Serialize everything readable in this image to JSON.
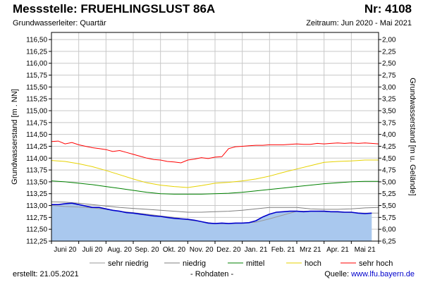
{
  "header": {
    "title": "Messstelle: FRUEHLINGSLUST 86A",
    "number": "Nr: 4108",
    "aquifer": "Grundwasserleiter: Quartär",
    "period": "Zeitraum: Jun 2020 - Mai 2021"
  },
  "footer": {
    "created": "erstellt:  21.05.2021",
    "raw": "- Rohdaten -",
    "source_label": "Quelle:",
    "source_url": "www.lfu.bayern.de"
  },
  "colors": {
    "sehr_niedrig": "#999999",
    "niedrig": "#808080",
    "mittel": "#008000",
    "hoch": "#e6d200",
    "sehr_hoch": "#ff0000",
    "actual_line": "#0000cc",
    "actual_fill": "#a9c8ee",
    "grid": "#c8c8c8"
  },
  "chart_data": {
    "type": "line",
    "title": "",
    "ylabel": "Grundwasserstand [m . NN]",
    "y2label": "Grundwasserstand [m u. Gelände]",
    "ylim": [
      112.25,
      116.65
    ],
    "y2lim": [
      6.25,
      1.85
    ],
    "yticks": [
      "116,50",
      "116,25",
      "116,00",
      "115,75",
      "115,50",
      "115,25",
      "115,00",
      "114,75",
      "114,50",
      "114,25",
      "114,00",
      "113,75",
      "113,50",
      "113,25",
      "113,00",
      "112,75",
      "112,50",
      "112,25"
    ],
    "y2ticks": [
      "2,00",
      "2,25",
      "2,50",
      "2,75",
      "3,00",
      "3,25",
      "3,50",
      "3,75",
      "4,00",
      "4,25",
      "4,50",
      "4,75",
      "5,00",
      "5,25",
      "5,50",
      "5,75",
      "6,00",
      "6,25"
    ],
    "xlim": [
      0,
      12
    ],
    "xticks": [
      "Juni 20",
      "Juli 20",
      "Aug. 20",
      "Sep. 20",
      "Okt. 20",
      "Nov. 20",
      "Dez. 20",
      "Jan. 21",
      "Feb. 21",
      "Mrz 21",
      "Apr. 21",
      "Mai 21"
    ],
    "grid": true,
    "legend_position": "bottom",
    "series": [
      {
        "name": "sehr niedrig",
        "key": "sehr_niedrig",
        "x": [
          0,
          0.5,
          1,
          1.5,
          2,
          2.5,
          3,
          3.5,
          4,
          4.5,
          5,
          5.5,
          6,
          6.5,
          7,
          7.5,
          8,
          8.5,
          9,
          9.5,
          10,
          10.5,
          11,
          11.5,
          12
        ],
        "y": [
          113.0,
          112.98,
          112.97,
          112.95,
          112.92,
          112.88,
          112.85,
          112.82,
          112.78,
          112.75,
          112.7,
          112.66,
          112.62,
          112.62,
          112.63,
          112.65,
          112.72,
          112.8,
          112.88,
          112.88,
          112.87,
          112.86,
          112.85,
          112.84,
          112.84
        ]
      },
      {
        "name": "niedrig",
        "key": "niedrig",
        "x": [
          0,
          0.5,
          1,
          1.5,
          2,
          2.5,
          3,
          3.5,
          4,
          4.5,
          5,
          5.5,
          6,
          6.5,
          7,
          7.5,
          8,
          8.5,
          9,
          9.5,
          10,
          10.5,
          11,
          11.5,
          12
        ],
        "y": [
          113.08,
          113.07,
          113.05,
          113.02,
          112.99,
          112.96,
          112.94,
          112.92,
          112.9,
          112.88,
          112.86,
          112.86,
          112.87,
          112.88,
          112.9,
          112.93,
          112.96,
          112.96,
          112.96,
          112.93,
          112.92,
          112.92,
          112.93,
          112.95,
          112.96
        ]
      },
      {
        "name": "mittel",
        "key": "mittel",
        "x": [
          0,
          0.5,
          1,
          1.5,
          2,
          2.5,
          3,
          3.5,
          4,
          4.5,
          5,
          5.5,
          6,
          6.5,
          7,
          7.5,
          8,
          8.5,
          9,
          9.5,
          10,
          10.5,
          11,
          11.5,
          12
        ],
        "y": [
          113.52,
          113.5,
          113.47,
          113.44,
          113.4,
          113.36,
          113.32,
          113.28,
          113.25,
          113.24,
          113.24,
          113.24,
          113.25,
          113.26,
          113.28,
          113.31,
          113.34,
          113.37,
          113.4,
          113.43,
          113.46,
          113.48,
          113.5,
          113.51,
          113.51
        ]
      },
      {
        "name": "hoch",
        "key": "hoch",
        "x": [
          0,
          0.5,
          1,
          1.5,
          2,
          2.5,
          3,
          3.5,
          4,
          4.5,
          5,
          5.5,
          6,
          6.5,
          7,
          7.5,
          8,
          8.5,
          9,
          9.5,
          10,
          10.5,
          11,
          11.5,
          12
        ],
        "y": [
          113.95,
          113.93,
          113.88,
          113.82,
          113.74,
          113.65,
          113.56,
          113.48,
          113.43,
          113.4,
          113.38,
          113.42,
          113.47,
          113.49,
          113.52,
          113.56,
          113.62,
          113.7,
          113.77,
          113.84,
          113.91,
          113.93,
          113.94,
          113.96,
          113.96
        ]
      },
      {
        "name": "sehr hoch",
        "key": "sehr_hoch",
        "x": [
          0,
          0.25,
          0.5,
          0.75,
          1,
          1.25,
          1.5,
          1.75,
          2,
          2.25,
          2.5,
          2.75,
          3,
          3.25,
          3.5,
          3.75,
          4,
          4.25,
          4.5,
          4.75,
          5,
          5.25,
          5.5,
          5.75,
          6,
          6.25,
          6.5,
          6.75,
          7,
          7.25,
          7.5,
          7.75,
          8,
          8.25,
          8.5,
          8.75,
          9,
          9.25,
          9.5,
          9.75,
          10,
          10.25,
          10.5,
          10.75,
          11,
          11.25,
          11.5,
          11.75,
          12
        ],
        "y": [
          114.35,
          114.36,
          114.3,
          114.33,
          114.28,
          114.25,
          114.22,
          114.2,
          114.18,
          114.14,
          114.16,
          114.12,
          114.08,
          114.04,
          114.0,
          113.97,
          113.96,
          113.93,
          113.92,
          113.9,
          113.96,
          113.98,
          114.01,
          113.99,
          114.02,
          114.03,
          114.2,
          114.24,
          114.25,
          114.26,
          114.27,
          114.27,
          114.28,
          114.28,
          114.28,
          114.29,
          114.3,
          114.29,
          114.29,
          114.31,
          114.3,
          114.31,
          114.32,
          114.31,
          114.32,
          114.31,
          114.32,
          114.31,
          114.3
        ]
      },
      {
        "name": "",
        "key": "actual",
        "x": [
          0,
          0.25,
          0.5,
          0.75,
          1,
          1.25,
          1.5,
          1.75,
          2,
          2.25,
          2.5,
          2.75,
          3,
          3.25,
          3.5,
          3.75,
          4,
          4.25,
          4.5,
          4.75,
          5,
          5.25,
          5.5,
          5.75,
          6,
          6.25,
          6.5,
          6.75,
          7,
          7.25,
          7.5,
          7.75,
          8,
          8.25,
          8.5,
          8.75,
          9,
          9.25,
          9.5,
          9.75,
          10,
          10.25,
          10.5,
          10.75,
          11,
          11.25,
          11.5,
          11.75
        ],
        "y": [
          113.02,
          113.02,
          113.04,
          113.05,
          113.02,
          112.99,
          112.96,
          112.96,
          112.93,
          112.9,
          112.88,
          112.85,
          112.84,
          112.82,
          112.8,
          112.78,
          112.77,
          112.75,
          112.73,
          112.72,
          112.71,
          112.69,
          112.66,
          112.63,
          112.62,
          112.63,
          112.62,
          112.63,
          112.63,
          112.64,
          112.68,
          112.76,
          112.82,
          112.86,
          112.87,
          112.88,
          112.88,
          112.87,
          112.88,
          112.88,
          112.88,
          112.87,
          112.87,
          112.86,
          112.86,
          112.84,
          112.83,
          112.84
        ]
      }
    ]
  }
}
